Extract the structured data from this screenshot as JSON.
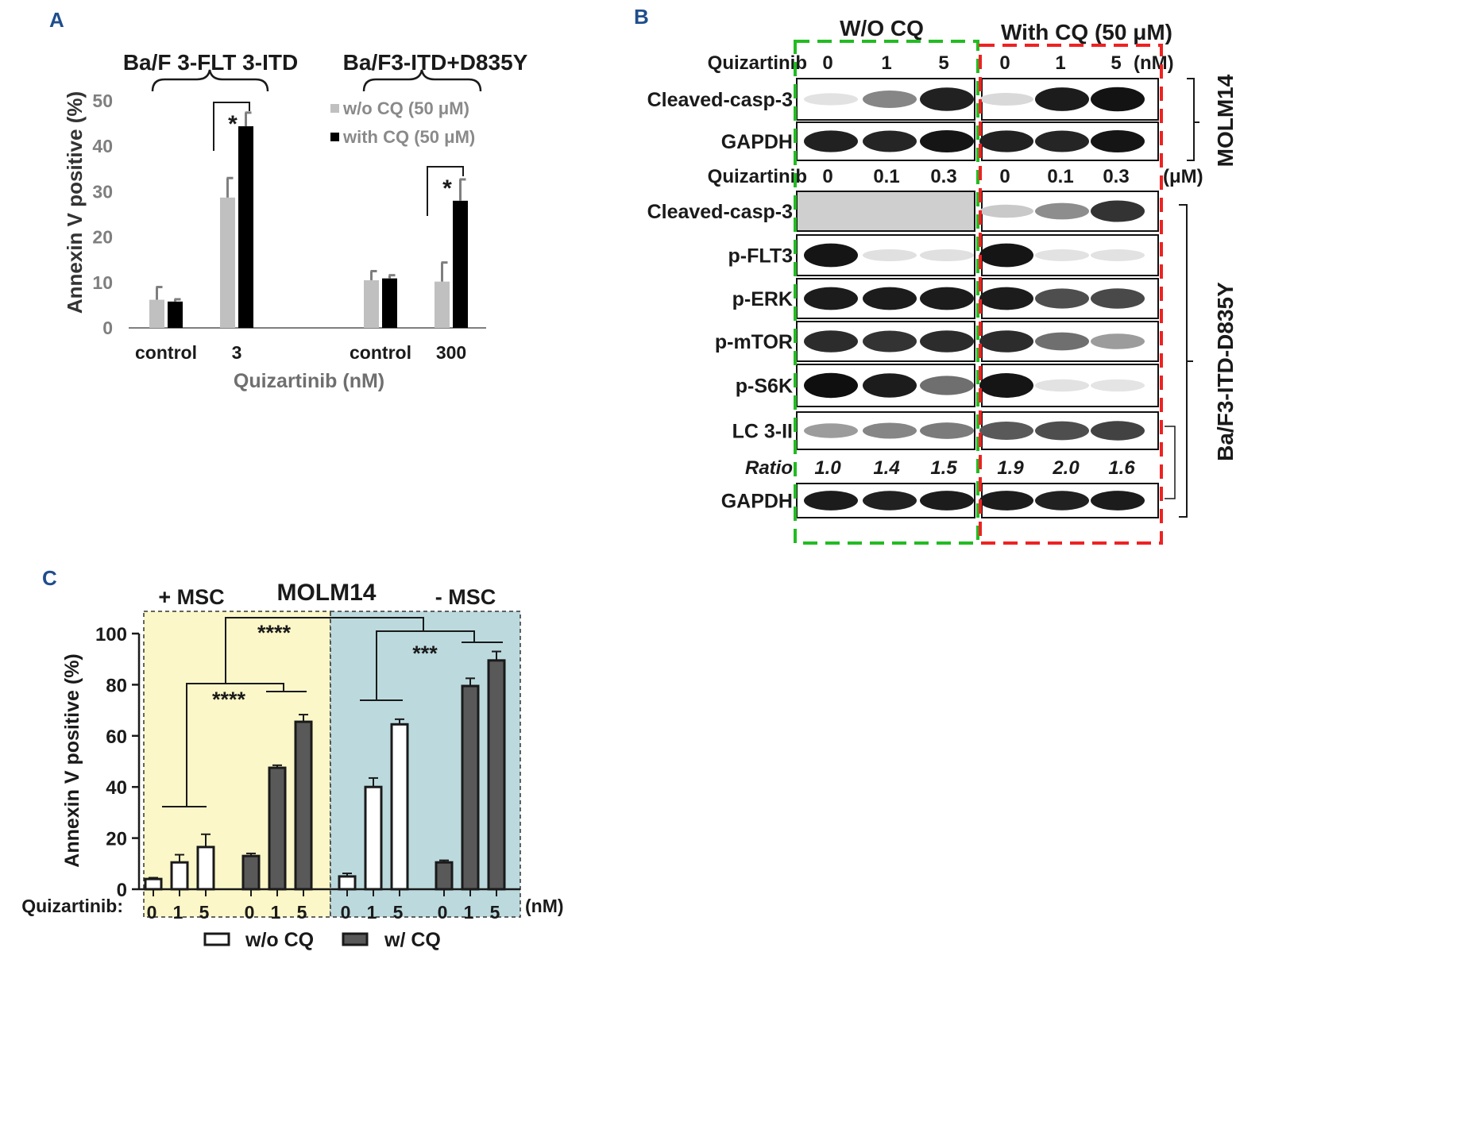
{
  "panels": {
    "a": {
      "letter": "A",
      "chart_data": {
        "type": "bar",
        "ylabel": "Annexin V positive (%)",
        "xlabel": "Quizartinib (nM)",
        "ylim": [
          0,
          50
        ],
        "yticks": [
          0,
          10,
          20,
          30,
          40,
          50
        ],
        "categories": [
          "control",
          "3",
          "control",
          "300"
        ],
        "group_labels": [
          "Ba/F 3-FLT 3-ITD",
          "Ba/F3-ITD+D835Y"
        ],
        "series": [
          {
            "name": "w/o CQ (50 μM)",
            "color": "#c0c0c0",
            "values": [
              6.2,
              28.7,
              10.5,
              10.2
            ],
            "errors": [
              2.8,
              4.3,
              2.0,
              4.2
            ]
          },
          {
            "name": "with CQ (50 μM)",
            "color": "#000000",
            "values": [
              5.8,
              44.4,
              10.9,
              28.0
            ],
            "errors": [
              0.5,
              3.0,
              0.7,
              4.7
            ]
          }
        ],
        "significance": [
          {
            "label": "*",
            "category_index": 1
          },
          {
            "label": "*",
            "category_index": 3
          }
        ]
      }
    },
    "b": {
      "letter": "B",
      "header_left": "W/O CQ",
      "header_right": "With CQ (50 μM)",
      "molm14": {
        "dose_label": "Quizartinib",
        "doses": [
          "0",
          "1",
          "5",
          "0",
          "1",
          "5"
        ],
        "unit": "(nM)",
        "cell_line": "MOLM14",
        "rows": [
          {
            "label": "Cleaved-casp-3",
            "intensity": [
              0.04,
              0.45,
              0.9,
              0.08,
              0.92,
              0.96
            ]
          },
          {
            "label": "GAPDH",
            "intensity": [
              0.9,
              0.88,
              0.95,
              0.9,
              0.88,
              0.95
            ]
          }
        ]
      },
      "baf3": {
        "dose_label": "Quizartinib",
        "doses": [
          "0",
          "0.1",
          "0.3",
          "0",
          "0.1",
          "0.3"
        ],
        "unit": "(μM)",
        "cell_line": "Ba/F3-ITD-D835Y",
        "rows": [
          {
            "label": "Cleaved-casp-3",
            "intensity": [
              0,
              0,
              0,
              0.15,
              0.42,
              0.82
            ]
          },
          {
            "label": "p-FLT3",
            "intensity": [
              0.95,
              0.05,
              0.05,
              0.95,
              0.04,
              0.04
            ]
          },
          {
            "label": "p-ERK",
            "intensity": [
              0.92,
              0.92,
              0.92,
              0.92,
              0.7,
              0.72
            ]
          },
          {
            "label": "p-mTOR",
            "intensity": [
              0.85,
              0.82,
              0.85,
              0.85,
              0.55,
              0.35
            ]
          },
          {
            "label": "p-S6K",
            "intensity": [
              0.98,
              0.92,
              0.55,
              0.95,
              0.04,
              0.03
            ]
          },
          {
            "label": "LC 3-II",
            "intensity": [
              0.35,
              0.45,
              0.5,
              0.65,
              0.7,
              0.75
            ]
          }
        ],
        "ratio_label": "Ratio",
        "ratios": [
          "1.0",
          "1.4",
          "1.5",
          "1.9",
          "2.0",
          "1.6"
        ],
        "gapdh_label": "GAPDH",
        "gapdh_intensity": [
          0.92,
          0.9,
          0.92,
          0.92,
          0.9,
          0.92
        ]
      }
    },
    "c": {
      "letter": "C",
      "chart_data": {
        "type": "bar",
        "title": "MOLM14",
        "left_panel_label": "+ MSC",
        "right_panel_label": "- MSC",
        "ylabel": "Annexin V positive (%)",
        "ylim": [
          0,
          100
        ],
        "yticks": [
          0,
          20,
          40,
          60,
          80,
          100
        ],
        "xaxis_prefix": "Quizartinib:",
        "x_unit": "(nM)",
        "doses": [
          "0",
          "1",
          "5",
          "0",
          "1",
          "5",
          "0",
          "1",
          "5",
          "0",
          "1",
          "5"
        ],
        "bars": [
          {
            "msc": "+ MSC",
            "cq": "w/o CQ",
            "dose": "0",
            "value": 4.0,
            "error": 0.5
          },
          {
            "msc": "+ MSC",
            "cq": "w/o CQ",
            "dose": "1",
            "value": 10.5,
            "error": 3.0
          },
          {
            "msc": "+ MSC",
            "cq": "w/o CQ",
            "dose": "5",
            "value": 16.5,
            "error": 5.0
          },
          {
            "msc": "+ MSC",
            "cq": "w/ CQ",
            "dose": "0",
            "value": 13.0,
            "error": 1.0
          },
          {
            "msc": "+ MSC",
            "cq": "w/ CQ",
            "dose": "1",
            "value": 47.5,
            "error": 1.0
          },
          {
            "msc": "+ MSC",
            "cq": "w/ CQ",
            "dose": "5",
            "value": 65.5,
            "error": 2.8
          },
          {
            "msc": "- MSC",
            "cq": "w/o CQ",
            "dose": "0",
            "value": 5.0,
            "error": 1.2
          },
          {
            "msc": "- MSC",
            "cq": "w/o CQ",
            "dose": "1",
            "value": 40.0,
            "error": 3.5
          },
          {
            "msc": "- MSC",
            "cq": "w/o CQ",
            "dose": "5",
            "value": 64.5,
            "error": 2.0
          },
          {
            "msc": "- MSC",
            "cq": "w/ CQ",
            "dose": "0",
            "value": 10.5,
            "error": 0.8
          },
          {
            "msc": "- MSC",
            "cq": "w/ CQ",
            "dose": "1",
            "value": 79.5,
            "error": 3.0
          },
          {
            "msc": "- MSC",
            "cq": "w/ CQ",
            "dose": "5",
            "value": 89.5,
            "error": 3.5
          }
        ],
        "legend": [
          {
            "name": "w/o CQ",
            "color": "#ffffff"
          },
          {
            "name": "w/ CQ",
            "color": "#595959"
          }
        ],
        "significance": [
          {
            "label": "****",
            "comparison": "+ MSC: w/o CQ vs w/ CQ"
          },
          {
            "label": "***",
            "comparison": "- MSC: w/o CQ vs w/ CQ"
          },
          {
            "label": "****",
            "comparison": "+ MSC vs - MSC"
          }
        ]
      }
    }
  },
  "colors": {
    "panel_letter": "#1f4e8c",
    "green_box": "#22bb22",
    "red_box": "#ee2222",
    "msc_plus_bg": "#fbf7c8",
    "msc_minus_bg": "#bcdade"
  }
}
